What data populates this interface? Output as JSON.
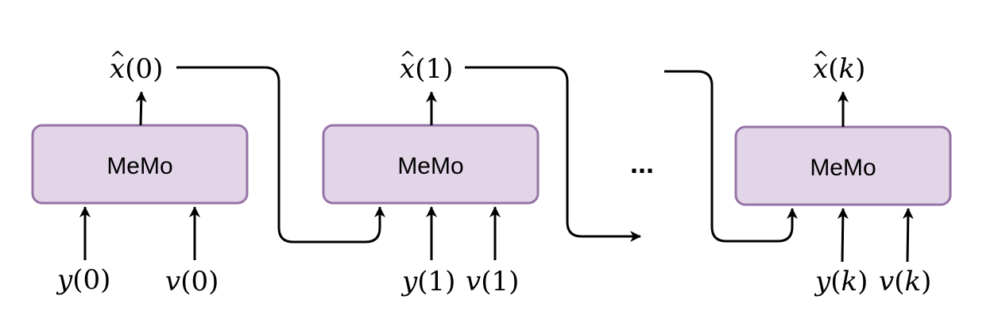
{
  "blocks": [
    {
      "label": "MeMo",
      "output": {
        "accent": "^",
        "var": "x",
        "arg": "0"
      },
      "inputs": [
        {
          "var": "y",
          "arg": "0"
        },
        {
          "var": "v",
          "arg": "0"
        }
      ]
    },
    {
      "label": "MeMo",
      "output": {
        "accent": "^",
        "var": "x",
        "arg": "1"
      },
      "inputs": [
        {
          "var": "y",
          "arg": "1"
        },
        {
          "var": "v",
          "arg": "1"
        }
      ]
    },
    {
      "label": "MeMo",
      "output": {
        "accent": "^",
        "var": "x",
        "arg": "k"
      },
      "inputs": [
        {
          "var": "y",
          "arg": "k"
        },
        {
          "var": "v",
          "arg": "k"
        }
      ]
    }
  ],
  "ellipsis": "...",
  "colors": {
    "block_fill": "#e1d5e7",
    "block_stroke": "#9673a6",
    "line": "#000000"
  }
}
